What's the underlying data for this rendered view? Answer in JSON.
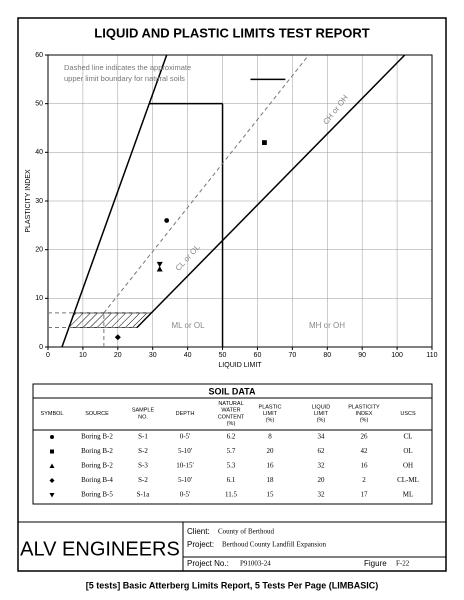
{
  "title": "LIQUID AND PLASTIC LIMITS TEST REPORT",
  "chart_data": {
    "type": "scatter",
    "xlabel": "LIQUID LIMIT",
    "ylabel": "PLASTICITY INDEX",
    "xlim": [
      0,
      110
    ],
    "ylim": [
      0,
      60
    ],
    "xticks": [
      0,
      10,
      20,
      30,
      40,
      50,
      60,
      70,
      80,
      90,
      100,
      110
    ],
    "yticks": [
      0,
      10,
      20,
      30,
      40,
      50,
      60
    ],
    "grid": true,
    "note": [
      "Dashed line indicates the approximate",
      "upper limit boundary for natural soils"
    ],
    "zones": [
      "CH or OH",
      "CL or OL",
      "ML or OL",
      "MH or OH"
    ],
    "lines": [
      {
        "x": [
          4,
          34
        ],
        "y": [
          0,
          60
        ],
        "dashed": false
      },
      {
        "x": [
          25.5,
          102.2
        ],
        "y": [
          4,
          60
        ],
        "dashed": false
      },
      {
        "x": [
          29,
          50
        ],
        "y": [
          50,
          50
        ],
        "dashed": false
      },
      {
        "x": [
          50,
          50
        ],
        "y": [
          0,
          50
        ],
        "dashed": false
      },
      {
        "x": [
          16,
          74.7
        ],
        "y": [
          7,
          60
        ],
        "dashed": true
      },
      {
        "x": [
          0,
          29.6
        ],
        "y": [
          7,
          7
        ],
        "dashed": true
      },
      {
        "x": [
          0,
          25.5
        ],
        "y": [
          4,
          4
        ],
        "dashed": true
      },
      {
        "x": [
          16,
          16
        ],
        "y": [
          0,
          7
        ],
        "dashed": true
      },
      {
        "x": [
          58,
          68
        ],
        "y": [
          55,
          55
        ],
        "dashed": false
      }
    ],
    "hatch": {
      "x": [
        6,
        25.5,
        29.6,
        7.5
      ],
      "y": [
        4,
        4,
        7,
        7
      ]
    }
  },
  "table": {
    "title": "SOIL DATA",
    "headers": [
      "SYMBOL",
      "SOURCE",
      "SAMPLE\nNO.",
      "DEPTH",
      "NATURAL\nWATER\nCONTENT\n(%)",
      "PLASTIC\nLIMIT\n(%)",
      "LIQUID\nLIMIT\n(%)",
      "PLASTICITY\nINDEX\n(%)",
      "USCS"
    ],
    "rows": [
      {
        "marker": "circle",
        "cells": [
          "Boring B-2",
          "S-1",
          "0-5'",
          6.2,
          8,
          34,
          26,
          "CL"
        ]
      },
      {
        "marker": "square",
        "cells": [
          "Boring B-2",
          "S-2",
          "5-10'",
          5.7,
          20,
          62,
          42,
          "OL"
        ]
      },
      {
        "marker": "triangle",
        "cells": [
          "Boring B-2",
          "S-3",
          "10-15'",
          5.3,
          16,
          32,
          16,
          "OH"
        ]
      },
      {
        "marker": "diamond",
        "cells": [
          "Boring B-4",
          "S-2",
          "5-10'",
          6.1,
          18,
          20,
          2,
          "CL-ML"
        ]
      },
      {
        "marker": "triangle-down",
        "cells": [
          "Boring B-5",
          "S-1a",
          "0-5'",
          11.5,
          15,
          32,
          17,
          "ML"
        ]
      }
    ]
  },
  "footer": {
    "company": "ALV ENGINEERS",
    "client_label": "Client:",
    "client": "County of Berthoud",
    "project_label": "Project:",
    "project": "Berthoud County Landfill Expansion",
    "project_no_label": "Project No.:",
    "project_no": "P91003-24",
    "figure_label": "Figure",
    "figure": "F-22"
  },
  "caption": "[5 tests] Basic Atterberg Limits Report, 5 Tests Per Page (LIMBASIC)"
}
